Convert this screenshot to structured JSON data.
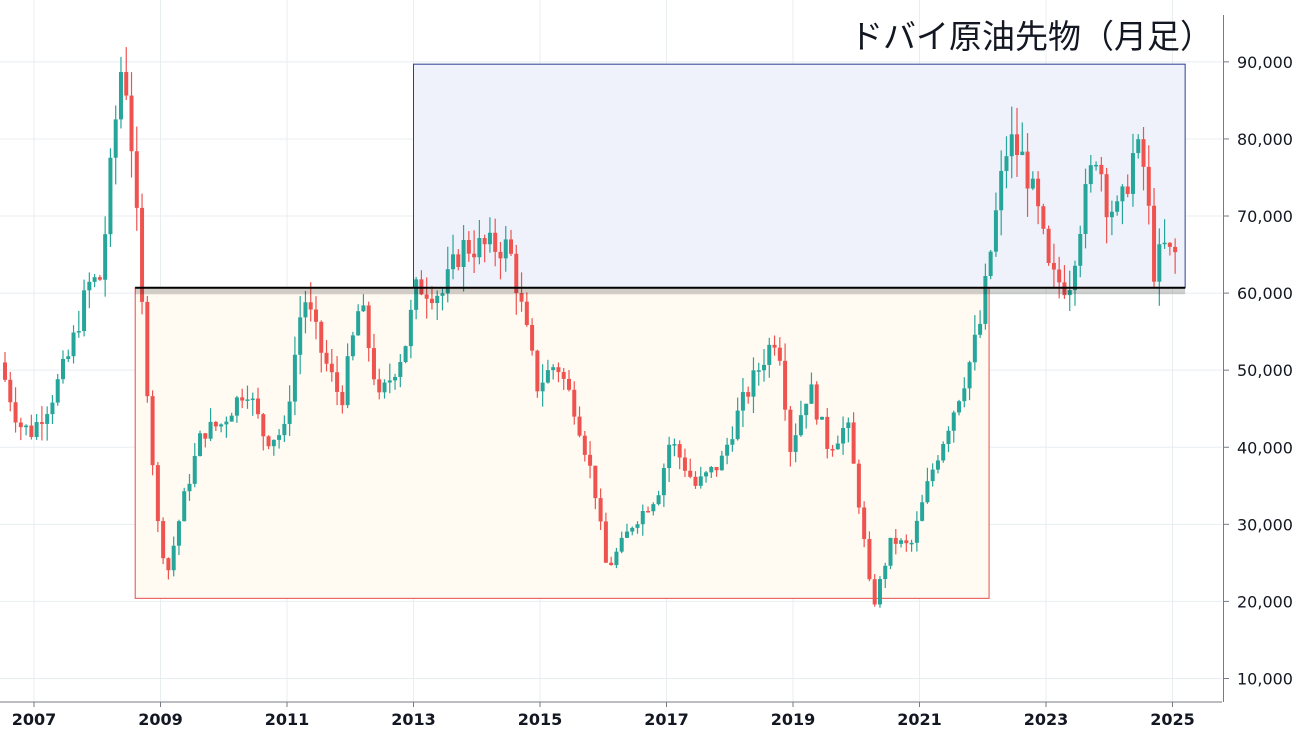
{
  "chart_data": {
    "type": "candlestick",
    "title": "ドバイ原油先物（月足）",
    "xlabel": "",
    "ylabel": "",
    "x_ticks": [
      "2007",
      "2009",
      "2011",
      "2013",
      "2015",
      "2017",
      "2019",
      "2021",
      "2023",
      "2025"
    ],
    "y_ticks": [
      "10,000",
      "20,000",
      "30,000",
      "40,000",
      "50,000",
      "60,000",
      "70,000",
      "80,000",
      "90,000"
    ],
    "ylim": [
      7000,
      97000
    ],
    "xlim": [
      2006.5,
      2025.8
    ],
    "grid": true,
    "colors": {
      "up": "#26a69a",
      "down": "#ef5350",
      "grid": "#e8eef0",
      "axis": "#787b86"
    },
    "support_line": {
      "value": 60700,
      "from": 2008.6,
      "to": 2025.2,
      "color": "#000000"
    },
    "zones": [
      {
        "name": "upper-range",
        "x": [
          2013.0,
          2025.2
        ],
        "y": [
          60700,
          89700
        ],
        "fill": "#eff2fa",
        "stroke": "#2d3e93"
      },
      {
        "name": "lower-range",
        "x": [
          2008.6,
          2022.1
        ],
        "y": [
          20400,
          60700
        ],
        "fill": "#fffaf2",
        "stroke": "#e84b4b"
      }
    ],
    "anchors": [
      [
        2006.5,
        51000
      ],
      [
        2006.8,
        43000
      ],
      [
        2007.0,
        42000
      ],
      [
        2007.3,
        46000
      ],
      [
        2007.6,
        52000
      ],
      [
        2007.9,
        61000
      ],
      [
        2008.1,
        62000
      ],
      [
        2008.3,
        80000
      ],
      [
        2008.45,
        91500
      ],
      [
        2008.6,
        78000
      ],
      [
        2008.75,
        58000
      ],
      [
        2008.9,
        40000
      ],
      [
        2009.0,
        30000
      ],
      [
        2009.15,
        23500
      ],
      [
        2009.4,
        33000
      ],
      [
        2009.7,
        42000
      ],
      [
        2010.0,
        43000
      ],
      [
        2010.4,
        48000
      ],
      [
        2010.7,
        41000
      ],
      [
        2011.0,
        42000
      ],
      [
        2011.3,
        60000
      ],
      [
        2011.6,
        52000
      ],
      [
        2011.9,
        46000
      ],
      [
        2012.2,
        59000
      ],
      [
        2012.5,
        46000
      ],
      [
        2012.9,
        53000
      ],
      [
        2013.1,
        61000
      ],
      [
        2013.5,
        60000
      ],
      [
        2013.8,
        66000
      ],
      [
        2014.2,
        66000
      ],
      [
        2014.55,
        66000
      ],
      [
        2014.75,
        58000
      ],
      [
        2015.0,
        48000
      ],
      [
        2015.3,
        51000
      ],
      [
        2015.6,
        45000
      ],
      [
        2015.9,
        35000
      ],
      [
        2016.1,
        24000
      ],
      [
        2016.5,
        30000
      ],
      [
        2016.9,
        34000
      ],
      [
        2017.1,
        41000
      ],
      [
        2017.5,
        35000
      ],
      [
        2017.9,
        38000
      ],
      [
        2018.2,
        45000
      ],
      [
        2018.6,
        52000
      ],
      [
        2018.8,
        55000
      ],
      [
        2019.0,
        40000
      ],
      [
        2019.3,
        48000
      ],
      [
        2019.6,
        40000
      ],
      [
        2019.9,
        43000
      ],
      [
        2020.1,
        32000
      ],
      [
        2020.3,
        19000
      ],
      [
        2020.6,
        28000
      ],
      [
        2020.9,
        27000
      ],
      [
        2021.2,
        36000
      ],
      [
        2021.5,
        43000
      ],
      [
        2021.8,
        50000
      ],
      [
        2022.0,
        56000
      ],
      [
        2022.3,
        73000
      ],
      [
        2022.45,
        80000
      ],
      [
        2022.7,
        77000
      ],
      [
        2022.95,
        69000
      ],
      [
        2023.1,
        62000
      ],
      [
        2023.4,
        61000
      ],
      [
        2023.6,
        70000
      ],
      [
        2023.85,
        79000
      ],
      [
        2024.0,
        72000
      ],
      [
        2024.2,
        70000
      ],
      [
        2024.45,
        79000
      ],
      [
        2024.6,
        76000
      ],
      [
        2024.75,
        63000
      ],
      [
        2024.9,
        66000
      ],
      [
        2025.0,
        65000
      ]
    ]
  }
}
